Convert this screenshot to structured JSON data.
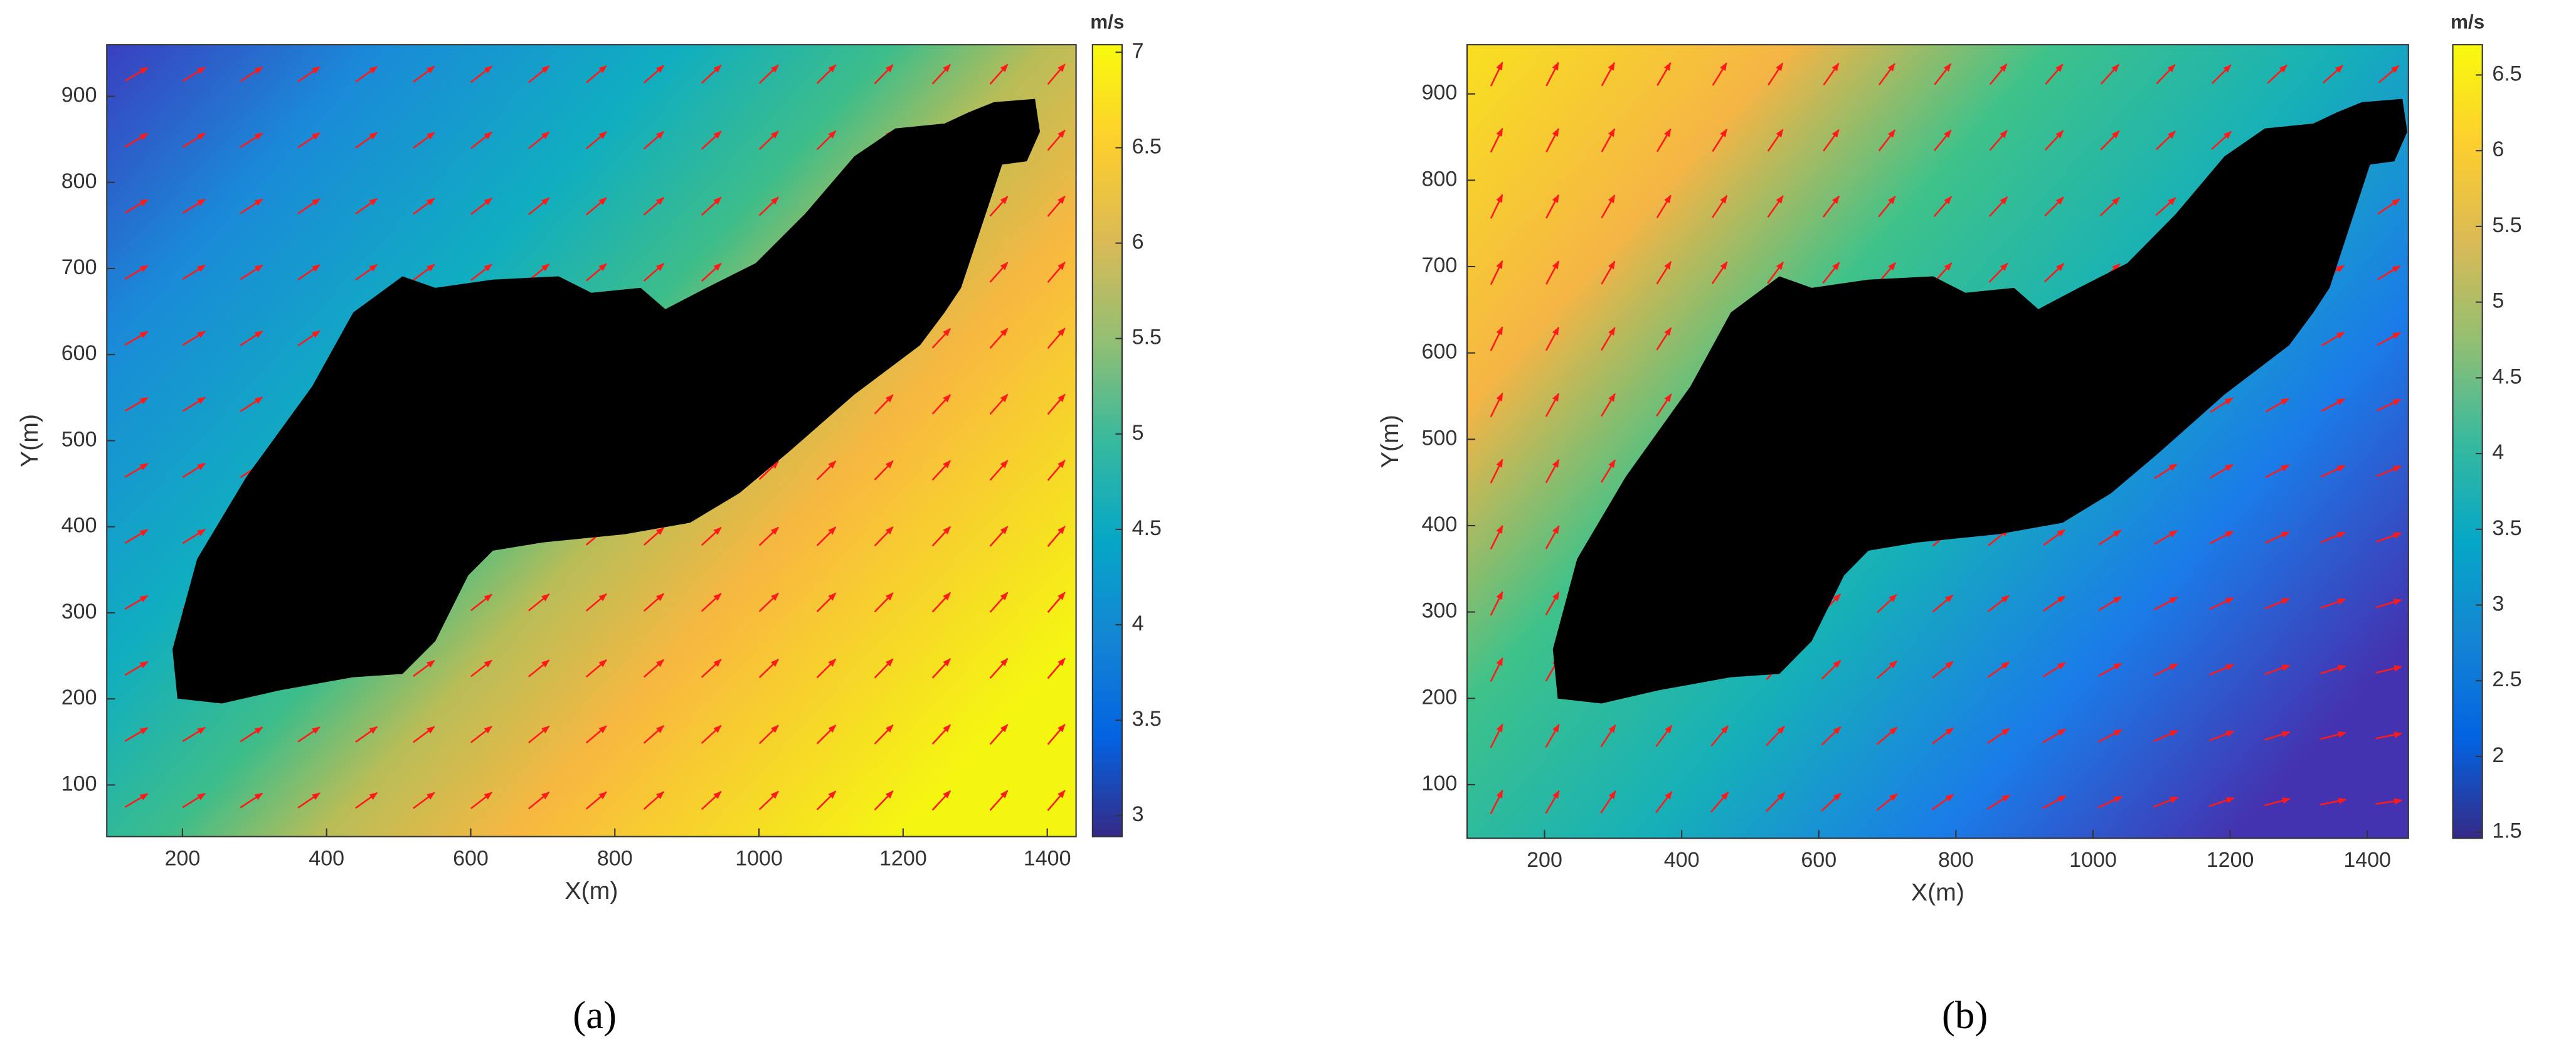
{
  "chart_data": [
    {
      "type": "heatmap",
      "caption": "(a)",
      "xlabel": "X(m)",
      "ylabel": "Y(m)",
      "xlim": [
        95,
        1440
      ],
      "xticks": [
        200,
        400,
        600,
        800,
        1000,
        1200,
        1400
      ],
      "ylim": [
        40,
        960
      ],
      "yticks": [
        100,
        200,
        300,
        400,
        500,
        600,
        700,
        800,
        900
      ],
      "colorbar_label": "m/s",
      "clim": [
        2.89,
        7.04
      ],
      "cticks": [
        3,
        3.5,
        4,
        4.5,
        5,
        5.5,
        6,
        6.5,
        7
      ]
    },
    {
      "type": "heatmap",
      "caption": "(b)",
      "xlabel": "X(m)",
      "ylabel": "Y(m)",
      "xlim": [
        87,
        1460
      ],
      "xticks": [
        200,
        400,
        600,
        800,
        1000,
        1200,
        1400
      ],
      "ylim": [
        38,
        957
      ],
      "yticks": [
        100,
        200,
        300,
        400,
        500,
        600,
        700,
        800,
        900
      ],
      "colorbar_label": "m/s",
      "clim": [
        1.46,
        6.7
      ],
      "cticks": [
        1.5,
        2,
        2.5,
        3,
        3.5,
        4,
        4.5,
        5,
        5.5,
        6,
        6.5
      ]
    }
  ]
}
